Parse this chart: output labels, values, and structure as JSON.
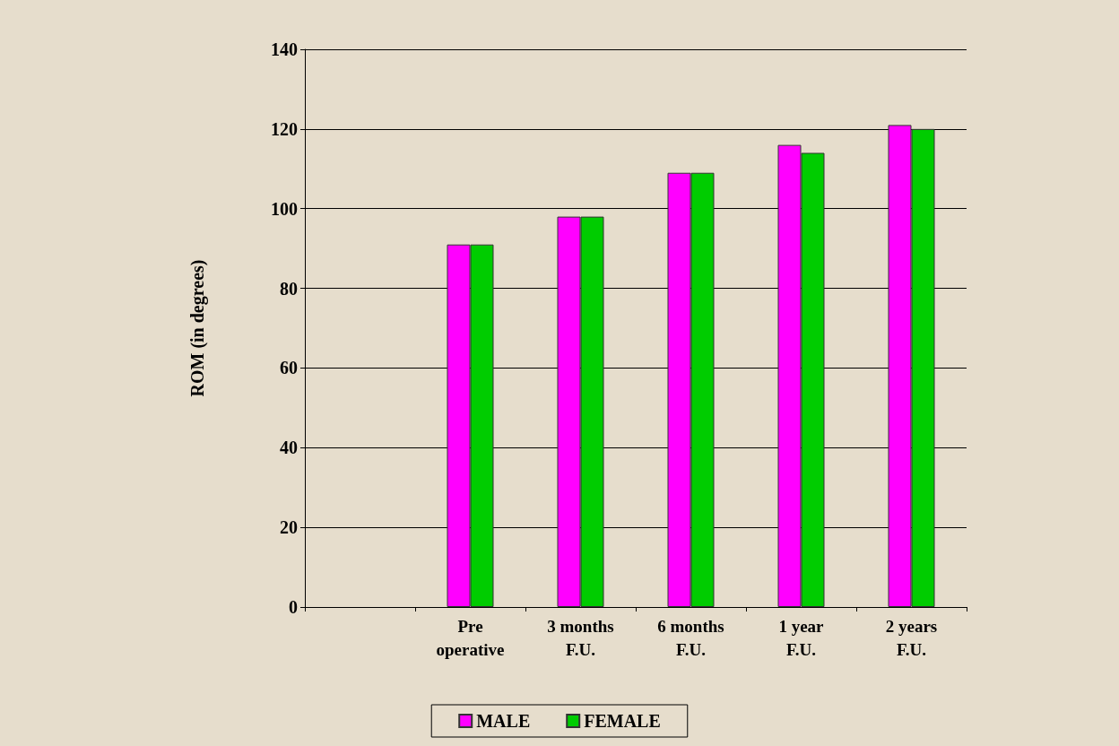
{
  "chart_data": {
    "type": "bar",
    "ylabel": "ROM (in degrees)",
    "categories": [
      null,
      "Pre\noperative",
      "3 months\nF.U.",
      "6 months\nF.U.",
      "1 year\nF.U.",
      "2 years\nF.U."
    ],
    "series": [
      {
        "name": "MALE",
        "color": "#ff00ff",
        "values": [
          null,
          91,
          98,
          109,
          116,
          121
        ]
      },
      {
        "name": "FEMALE",
        "color": "#00cc00",
        "values": [
          null,
          91,
          98,
          109,
          114,
          120
        ]
      }
    ],
    "ylim": [
      0,
      140
    ],
    "yticks": [
      0,
      20,
      40,
      60,
      80,
      100,
      120,
      140
    ],
    "grid": "y",
    "legend": "bottom"
  }
}
